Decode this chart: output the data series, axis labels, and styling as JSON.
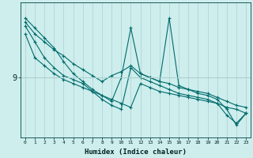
{
  "xlabel": "Humidex (Indice chaleur)",
  "ylabel": "",
  "yticks": [
    9
  ],
  "ytick_labels": [
    "9"
  ],
  "xlim": [
    -0.5,
    23.5
  ],
  "ylim": [
    6.0,
    12.8
  ],
  "bg_color": "#cdeeed",
  "plot_bg_color": "#cdeeed",
  "grid_color": "#aecfcf",
  "line_color": "#006b6b",
  "marker_color": "#006b6b",
  "xticks": [
    0,
    1,
    2,
    3,
    4,
    5,
    6,
    7,
    8,
    9,
    10,
    11,
    12,
    13,
    14,
    15,
    16,
    17,
    18,
    19,
    20,
    21,
    22,
    23
  ],
  "series": [
    [
      11.8,
      11.2,
      10.8,
      10.4,
      10.1,
      9.7,
      9.4,
      9.1,
      8.8,
      9.1,
      9.3,
      9.6,
      9.2,
      9.0,
      8.8,
      8.7,
      8.5,
      8.4,
      8.3,
      8.2,
      8.0,
      7.8,
      7.6,
      7.5
    ],
    [
      12.0,
      11.5,
      11.0,
      10.5,
      9.8,
      9.2,
      8.8,
      8.4,
      8.1,
      7.8,
      9.0,
      11.5,
      9.2,
      9.0,
      8.8,
      12.0,
      8.6,
      8.4,
      8.2,
      8.1,
      7.9,
      7.4,
      6.6,
      7.2
    ],
    [
      11.6,
      10.8,
      10.0,
      9.5,
      9.1,
      8.9,
      8.7,
      8.3,
      7.9,
      7.6,
      7.4,
      9.5,
      9.0,
      8.8,
      8.6,
      8.4,
      8.2,
      8.1,
      8.0,
      7.9,
      7.7,
      7.5,
      7.4,
      7.2
    ],
    [
      11.2,
      10.0,
      9.6,
      9.2,
      8.9,
      8.7,
      8.5,
      8.3,
      8.1,
      7.9,
      7.7,
      7.5,
      8.7,
      8.5,
      8.3,
      8.2,
      8.1,
      8.0,
      7.9,
      7.8,
      7.7,
      7.1,
      6.7,
      7.2
    ]
  ]
}
